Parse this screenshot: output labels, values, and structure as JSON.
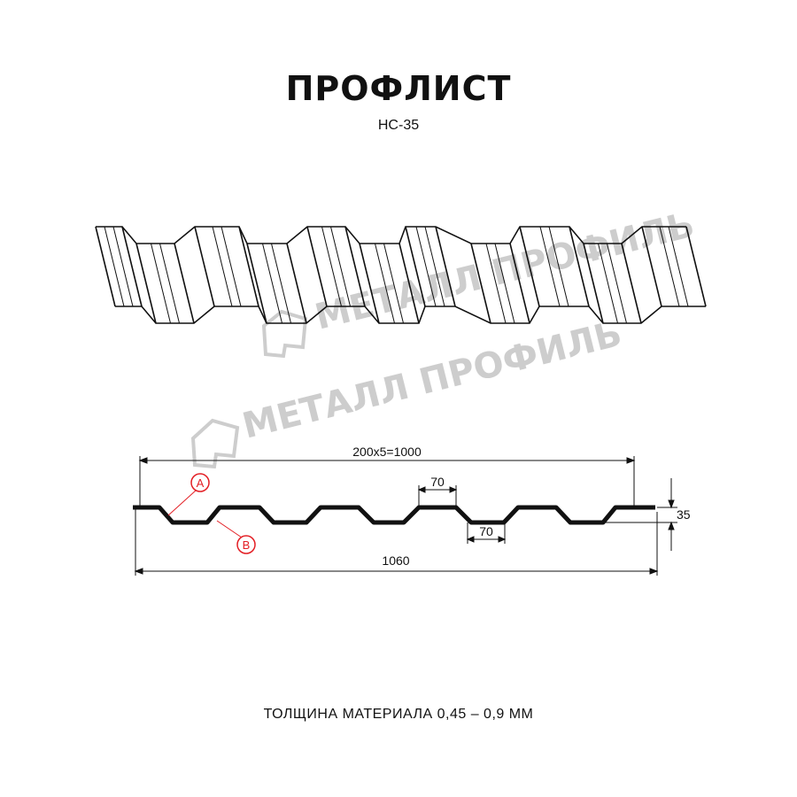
{
  "header": {
    "title": "ПРОФЛИСТ",
    "subtitle": "НС-35"
  },
  "watermark": {
    "text": "МЕТАЛЛ ПРОФИЛЬ",
    "color": "#c8c8c8"
  },
  "drawing": {
    "dim_pitch": "200x5=1000",
    "dim_total": "1060",
    "dim_height": "35",
    "dim_top_flat": "70",
    "dim_bottom_flat": "70",
    "marker_a": "A",
    "marker_b": "B",
    "marker_color": "#e31e24"
  },
  "footer": {
    "thickness": "ТОЛЩИНА МАТЕРИАЛА 0,45 – 0,9 ММ"
  }
}
